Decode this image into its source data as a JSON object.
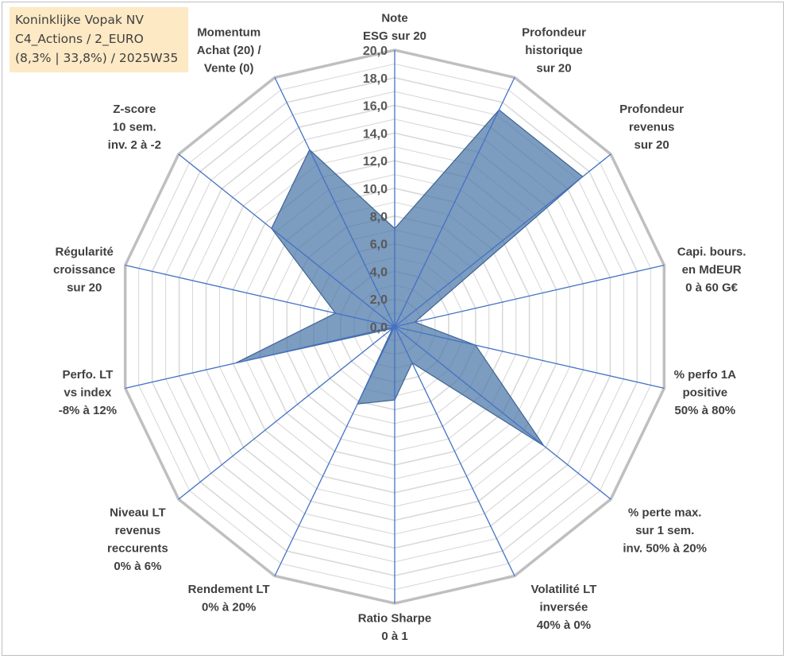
{
  "chart_data": {
    "type": "radar",
    "title_lines": [
      "Koninklijke Vopak NV",
      "C4_Actions / 2_EURO",
      "(8,3% | 33,8%) / 2025W35"
    ],
    "rlim": [
      0,
      20
    ],
    "tick_labels": [
      "0,0",
      "2,0",
      "4,0",
      "6,0",
      "8,0",
      "10,0",
      "12,0",
      "14,0",
      "16,0",
      "18,0",
      "20,0"
    ],
    "categories": [
      [
        "Note",
        "ESG sur 20"
      ],
      [
        "Profondeur",
        "historique",
        "sur 20"
      ],
      [
        "Profondeur",
        "revenus",
        "sur 20"
      ],
      [
        "Capi. bours.",
        "en MdEUR",
        "0 à 60 G€"
      ],
      [
        "% perfo 1A",
        "positive",
        "50% à 80%"
      ],
      [
        "% perte max.",
        "sur 1 sem.",
        "inv. 50% à 20%"
      ],
      [
        "Volatilité LT",
        "inversée",
        "40% à 0%"
      ],
      [
        "Ratio Sharpe",
        "0 à 1"
      ],
      [
        "Rendement LT",
        "0% à 20%"
      ],
      [
        "Niveau LT",
        "revenus",
        "reccurents",
        "0% à 6%"
      ],
      [
        "Perfo. LT",
        "vs index",
        "-8% à 12%"
      ],
      [
        "Régularité",
        "croissance",
        "sur 20"
      ],
      [
        "Z-score",
        "10 sem.",
        "inv. 2 à -2"
      ],
      [
        "Momentum",
        "Achat (20) /",
        "Vente (0)"
      ]
    ],
    "values": [
      7.1,
      17.4,
      17.4,
      1.5,
      6.0,
      13.8,
      2.9,
      5.3,
      6.2,
      0.2,
      11.8,
      4.4,
      11.4,
      14.2
    ],
    "colors": {
      "fill": "#4a76a8",
      "fill_opacity": 0.72,
      "stroke": "#3d6494",
      "spoke": "#4472c4",
      "ring": "#d9d9d9",
      "outer_ring": "#bfbfbf"
    },
    "grid": true,
    "minor_rings": true
  }
}
